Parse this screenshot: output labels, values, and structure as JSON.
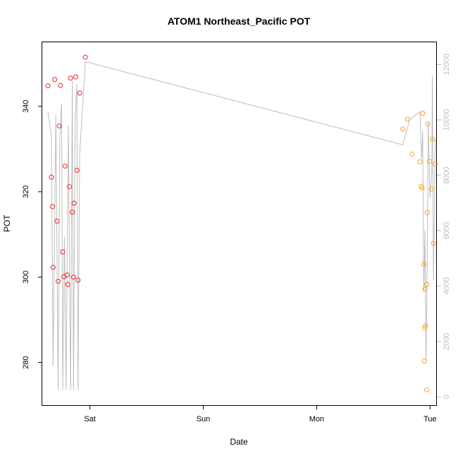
{
  "chart_data": {
    "type": "scatter",
    "title": "ATOM1 Northeast_Pacific POT",
    "xlabel": "Date",
    "ylabel": "POT",
    "x_tick_labels": [
      "Sat",
      "Sun",
      "Mon",
      "Tue"
    ],
    "x_tick_positions_days": [
      1,
      2,
      3,
      4
    ],
    "xlim_days": [
      0.58,
      4.06
    ],
    "ylim": [
      270,
      355
    ],
    "y_ticks": [
      280,
      300,
      320,
      340
    ],
    "y2lim": [
      -300,
      12800
    ],
    "y2_ticks": [
      0,
      2000,
      4000,
      6000,
      8000,
      10000,
      12000
    ],
    "grid": false,
    "series": [
      {
        "marker": "open-circle",
        "color": "#ee2222",
        "points": [
          {
            "x": 0.63,
            "y": 344.8
          },
          {
            "x": 0.66,
            "y": 323.4
          },
          {
            "x": 0.67,
            "y": 316.5
          },
          {
            "x": 0.675,
            "y": 302.3
          },
          {
            "x": 0.69,
            "y": 346.3
          },
          {
            "x": 0.71,
            "y": 313.1
          },
          {
            "x": 0.72,
            "y": 299.0
          },
          {
            "x": 0.73,
            "y": 335.4
          },
          {
            "x": 0.74,
            "y": 344.9
          },
          {
            "x": 0.76,
            "y": 305.9
          },
          {
            "x": 0.77,
            "y": 300.1
          },
          {
            "x": 0.78,
            "y": 326.0
          },
          {
            "x": 0.8,
            "y": 300.5
          },
          {
            "x": 0.805,
            "y": 298.3
          },
          {
            "x": 0.82,
            "y": 321.2
          },
          {
            "x": 0.83,
            "y": 346.6
          },
          {
            "x": 0.845,
            "y": 315.2
          },
          {
            "x": 0.855,
            "y": 300.0
          },
          {
            "x": 0.86,
            "y": 317.3
          },
          {
            "x": 0.875,
            "y": 346.9
          },
          {
            "x": 0.885,
            "y": 325.0
          },
          {
            "x": 0.895,
            "y": 299.3
          },
          {
            "x": 0.91,
            "y": 343.1
          },
          {
            "x": 0.96,
            "y": 351.5
          }
        ]
      },
      {
        "marker": "open-circle",
        "color": "#ffa020",
        "points": [
          {
            "x": 3.76,
            "y": 334.7
          },
          {
            "x": 3.8,
            "y": 337.0
          },
          {
            "x": 3.84,
            "y": 328.8
          },
          {
            "x": 3.91,
            "y": 327.0
          },
          {
            "x": 3.92,
            "y": 321.3
          },
          {
            "x": 3.93,
            "y": 320.9
          },
          {
            "x": 3.935,
            "y": 338.4
          },
          {
            "x": 3.945,
            "y": 303.0
          },
          {
            "x": 3.95,
            "y": 280.3
          },
          {
            "x": 3.952,
            "y": 288.1
          },
          {
            "x": 3.955,
            "y": 297.2
          },
          {
            "x": 3.96,
            "y": 288.6
          },
          {
            "x": 3.97,
            "y": 273.6
          },
          {
            "x": 3.972,
            "y": 298.3
          },
          {
            "x": 3.975,
            "y": 315.1
          },
          {
            "x": 3.98,
            "y": 335.9
          },
          {
            "x": 3.995,
            "y": 327.1
          },
          {
            "x": 4.01,
            "y": 320.6
          },
          {
            "x": 4.02,
            "y": 332.3
          },
          {
            "x": 4.03,
            "y": 307.9
          },
          {
            "x": 4.045,
            "y": 326.5
          }
        ]
      },
      {
        "type": "line",
        "axis": "right",
        "color": "#bebebe",
        "points": [
          {
            "x": 0.63,
            "y": 10300
          },
          {
            "x": 0.66,
            "y": 9400
          },
          {
            "x": 0.675,
            "y": 1100
          },
          {
            "x": 0.7,
            "y": 10200
          },
          {
            "x": 0.72,
            "y": 250
          },
          {
            "x": 0.735,
            "y": 9400
          },
          {
            "x": 0.75,
            "y": 10600
          },
          {
            "x": 0.76,
            "y": 250
          },
          {
            "x": 0.775,
            "y": 5800
          },
          {
            "x": 0.79,
            "y": 250
          },
          {
            "x": 0.81,
            "y": 9800
          },
          {
            "x": 0.83,
            "y": 250
          },
          {
            "x": 0.845,
            "y": 11400
          },
          {
            "x": 0.855,
            "y": 250
          },
          {
            "x": 0.87,
            "y": 10000
          },
          {
            "x": 0.885,
            "y": 11300
          },
          {
            "x": 0.895,
            "y": 250
          },
          {
            "x": 0.91,
            "y": 8800
          },
          {
            "x": 0.96,
            "y": 12100
          },
          {
            "x": 3.76,
            "y": 9100
          },
          {
            "x": 3.82,
            "y": 10000
          },
          {
            "x": 3.91,
            "y": 10300
          },
          {
            "x": 3.925,
            "y": 8600
          },
          {
            "x": 3.935,
            "y": 9600
          },
          {
            "x": 3.945,
            "y": 3800
          },
          {
            "x": 3.955,
            "y": 6000
          },
          {
            "x": 3.965,
            "y": 1300
          },
          {
            "x": 3.975,
            "y": 4900
          },
          {
            "x": 3.985,
            "y": 9900
          },
          {
            "x": 4.0,
            "y": 7200
          },
          {
            "x": 4.015,
            "y": 8100
          },
          {
            "x": 4.02,
            "y": 11600
          },
          {
            "x": 4.03,
            "y": 4200
          },
          {
            "x": 4.045,
            "y": 9300
          }
        ]
      }
    ]
  }
}
